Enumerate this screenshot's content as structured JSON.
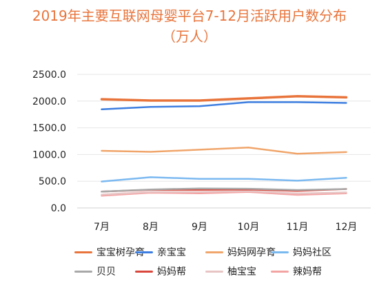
{
  "title_line1": "2019年主要互联网母婴平台7-12月活跃用户数分布",
  "title_line2": "（万人）",
  "chart_data": {
    "type": "line",
    "title": "2019年主要互联网母婴平台7-12月活跃用户数分布（万人）",
    "xlabel": "",
    "ylabel": "",
    "categories": [
      "7月",
      "8月",
      "9月",
      "10月",
      "11月",
      "12月"
    ],
    "y_ticks": [
      "0.0",
      "500.0",
      "1000.0",
      "1500.0",
      "2000.0",
      "2500.0"
    ],
    "ylim": [
      0,
      2500
    ],
    "grid": "horizontal",
    "legend_position": "bottom",
    "series": [
      {
        "name": "宝宝树孕育",
        "color": "#e8743b",
        "values": [
          2035,
          2010,
          2010,
          2050,
          2090,
          2070
        ]
      },
      {
        "name": "亲宝宝",
        "color": "#3b7de0",
        "values": [
          1845,
          1890,
          1905,
          1980,
          1980,
          1965
        ]
      },
      {
        "name": "妈妈网孕育",
        "color": "#f0a56a",
        "values": [
          1070,
          1050,
          1090,
          1130,
          1015,
          1045
        ]
      },
      {
        "name": "妈妈社区",
        "color": "#7ab8f0",
        "values": [
          495,
          575,
          545,
          545,
          510,
          565
        ]
      },
      {
        "name": "贝贝",
        "color": "#a8a8a8",
        "values": [
          305,
          345,
          365,
          360,
          335,
          355
        ]
      },
      {
        "name": "妈妈帮",
        "color": "#d9463b",
        "values": [
          305,
          340,
          340,
          345,
          320,
          355
        ]
      },
      {
        "name": "柚宝宝",
        "color": "#e8c4c4",
        "values": [
          250,
          300,
          300,
          315,
          270,
          290
        ]
      },
      {
        "name": "辣妈帮",
        "color": "#f4a3a3",
        "values": [
          230,
          285,
          275,
          300,
          245,
          275
        ]
      }
    ]
  }
}
